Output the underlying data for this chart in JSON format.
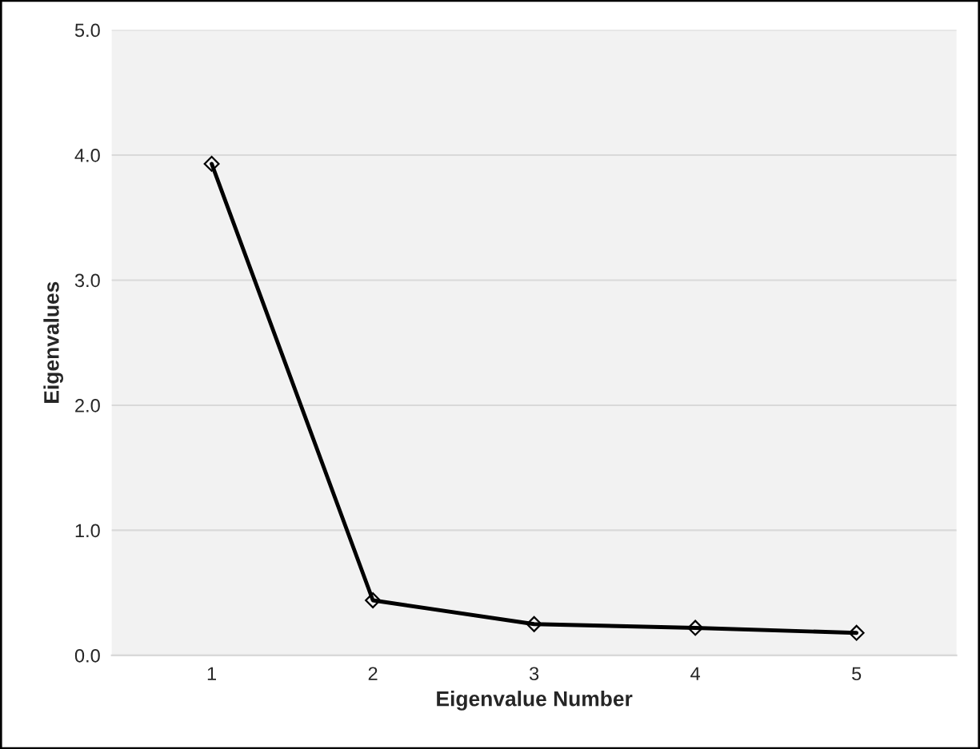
{
  "chart_data": {
    "type": "line",
    "xlabel": "Eigenvalue Number",
    "ylabel": "Eigenvalues",
    "categories": [
      "1",
      "2",
      "3",
      "4",
      "5"
    ],
    "series": [
      {
        "color": "#000000",
        "values": [
          3.93,
          0.44,
          0.25,
          0.22,
          0.18
        ]
      }
    ],
    "ylim": [
      0,
      5
    ],
    "yticks": [
      {
        "value": 0,
        "label": "0.0"
      },
      {
        "value": 1,
        "label": "1.0"
      },
      {
        "value": 2,
        "label": "2.0"
      },
      {
        "value": 3,
        "label": "3.0"
      },
      {
        "value": 4,
        "label": "4.0"
      },
      {
        "value": 5,
        "label": "5.0"
      }
    ],
    "grid": "y",
    "marker": "diamond",
    "line_style": "solid"
  }
}
